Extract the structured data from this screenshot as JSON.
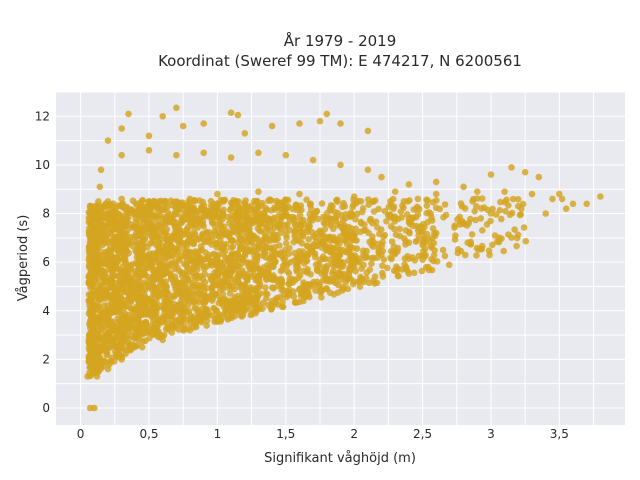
{
  "chart_data": {
    "type": "scatter",
    "title": "År 1979 - 2019",
    "subtitle": "Koordinat (Sweref 99 TM): E 474217, N 6200561",
    "xlabel": "Signifikant våghöjd (m)",
    "ylabel": "Vågperiod (s)",
    "xlim": [
      -0.18,
      3.98
    ],
    "ylim": [
      -0.7,
      13.0
    ],
    "x_ticks": [
      0,
      0.5,
      1,
      1.5,
      2,
      2.5,
      3,
      3.5
    ],
    "x_tick_labels": [
      "0",
      "0,5",
      "1",
      "1,5",
      "2",
      "2,5",
      "3",
      "3,5"
    ],
    "y_ticks": [
      0,
      2,
      4,
      6,
      8,
      10,
      12
    ],
    "y_tick_labels": [
      "0",
      "2",
      "4",
      "6",
      "8",
      "10",
      "12"
    ],
    "grid": true,
    "legend": "none",
    "marker_color": "#d4a520",
    "background_color": "#e9e9f0",
    "series": [
      {
        "points": [
          [
            0.05,
            1.3
          ],
          [
            0.06,
            1.9
          ],
          [
            0.07,
            2.7
          ],
          [
            0.08,
            3.5
          ],
          [
            0.09,
            4.6
          ],
          [
            0.1,
            5.4
          ],
          [
            0.1,
            6.3
          ],
          [
            0.11,
            7.2
          ],
          [
            0.12,
            7.9
          ],
          [
            0.13,
            8.5
          ],
          [
            0.14,
            9.1
          ],
          [
            0.15,
            9.8
          ],
          [
            0.07,
            0.0
          ],
          [
            0.1,
            0.0
          ],
          [
            0.12,
            1.3
          ],
          [
            0.2,
            1.6
          ],
          [
            0.3,
            2.0
          ],
          [
            0.45,
            2.5
          ],
          [
            0.6,
            2.8
          ],
          [
            0.8,
            3.2
          ],
          [
            1.0,
            3.6
          ],
          [
            1.2,
            4.0
          ],
          [
            1.4,
            4.4
          ],
          [
            1.6,
            4.9
          ],
          [
            1.8,
            5.3
          ],
          [
            2.0,
            5.8
          ],
          [
            2.2,
            6.3
          ],
          [
            2.4,
            6.8
          ],
          [
            2.6,
            7.2
          ],
          [
            2.8,
            7.6
          ],
          [
            3.0,
            8.0
          ],
          [
            3.2,
            8.3
          ],
          [
            0.2,
            8.5
          ],
          [
            0.3,
            8.6
          ],
          [
            0.5,
            8.5
          ],
          [
            0.8,
            8.6
          ],
          [
            1.0,
            8.8
          ],
          [
            1.3,
            8.9
          ],
          [
            1.6,
            8.8
          ],
          [
            2.0,
            8.7
          ],
          [
            2.3,
            8.9
          ],
          [
            2.6,
            8.8
          ],
          [
            2.9,
            8.9
          ],
          [
            3.1,
            8.9
          ],
          [
            3.3,
            8.8
          ],
          [
            3.5,
            8.8
          ],
          [
            3.4,
            8.0
          ],
          [
            3.52,
            8.6
          ],
          [
            3.6,
            8.4
          ],
          [
            3.7,
            8.4
          ],
          [
            3.8,
            8.7
          ],
          [
            3.55,
            8.2
          ],
          [
            3.45,
            8.6
          ],
          [
            0.2,
            11.0
          ],
          [
            0.3,
            11.5
          ],
          [
            0.35,
            12.1
          ],
          [
            0.5,
            11.2
          ],
          [
            0.6,
            12.0
          ],
          [
            0.7,
            12.35
          ],
          [
            0.75,
            11.6
          ],
          [
            0.9,
            11.7
          ],
          [
            1.1,
            12.15
          ],
          [
            1.15,
            12.05
          ],
          [
            1.2,
            11.3
          ],
          [
            1.4,
            11.6
          ],
          [
            1.6,
            11.7
          ],
          [
            1.75,
            11.8
          ],
          [
            1.8,
            12.1
          ],
          [
            1.9,
            11.7
          ],
          [
            2.1,
            11.4
          ],
          [
            0.3,
            10.4
          ],
          [
            0.5,
            10.6
          ],
          [
            0.7,
            10.4
          ],
          [
            0.9,
            10.5
          ],
          [
            1.1,
            10.3
          ],
          [
            1.3,
            10.5
          ],
          [
            1.5,
            10.4
          ],
          [
            1.7,
            10.2
          ],
          [
            1.9,
            10.0
          ],
          [
            2.1,
            9.8
          ],
          [
            2.2,
            9.5
          ],
          [
            2.4,
            9.2
          ],
          [
            2.6,
            9.3
          ],
          [
            2.8,
            9.1
          ],
          [
            3.0,
            9.6
          ],
          [
            3.15,
            9.9
          ],
          [
            3.25,
            9.7
          ],
          [
            3.35,
            9.5
          ],
          [
            2.3,
            6.4
          ],
          [
            2.5,
            6.7
          ],
          [
            2.65,
            6.5
          ],
          [
            2.83,
            6.8
          ],
          [
            2.5,
            6.1
          ],
          [
            2.35,
            5.7
          ],
          [
            2.0,
            5.2
          ],
          [
            1.8,
            4.9
          ]
        ]
      }
    ]
  }
}
